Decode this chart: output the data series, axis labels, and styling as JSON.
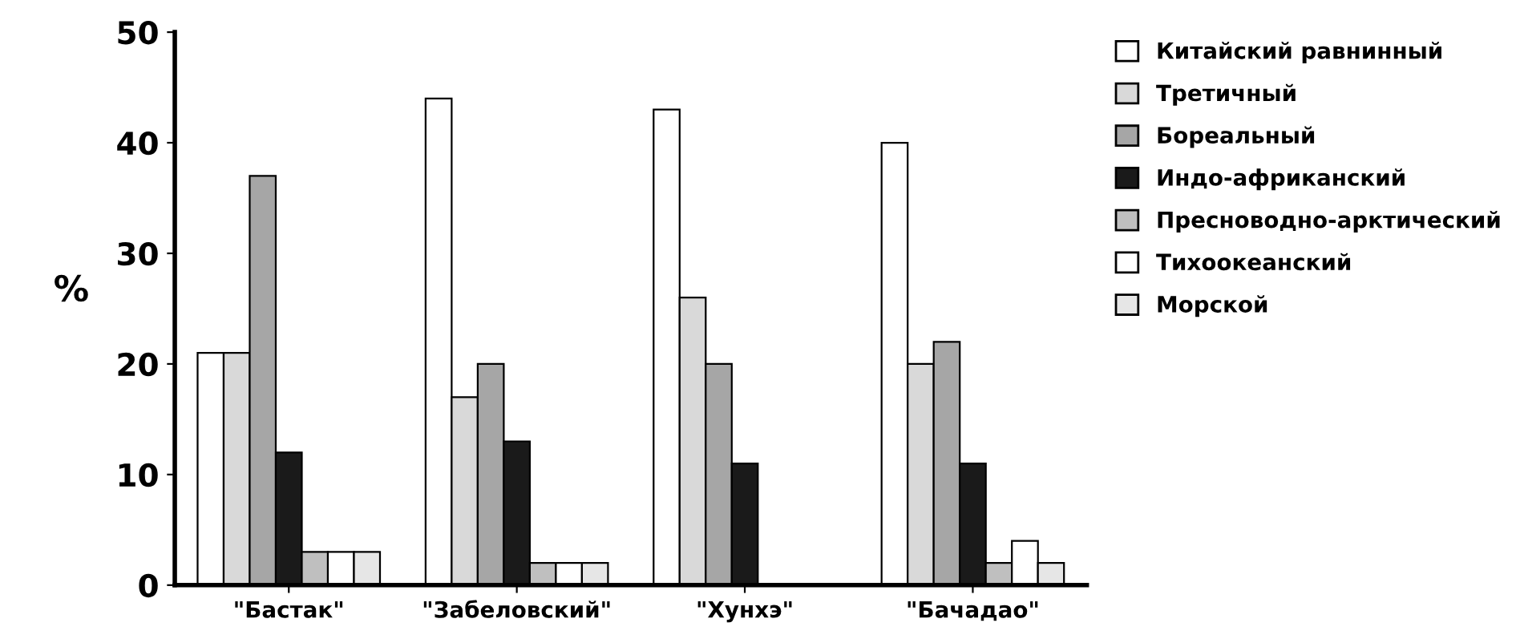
{
  "chart_data": {
    "type": "bar",
    "ylabel": "%",
    "categories": [
      "\"Бастак\"",
      "\"Забеловский\"",
      "\"Хунхэ\"",
      "\"Бачадао\""
    ],
    "series": [
      {
        "name": "Китайский равнинный",
        "color": "#ffffff",
        "values": [
          21,
          44,
          43,
          40
        ]
      },
      {
        "name": "Третичный",
        "color": "#d9d9d9",
        "values": [
          21,
          17,
          26,
          20
        ]
      },
      {
        "name": "Бореальный",
        "color": "#a6a6a6",
        "values": [
          37,
          20,
          20,
          22
        ]
      },
      {
        "name": "Индо-африканский",
        "color": "#1a1a1a",
        "values": [
          12,
          13,
          11,
          11
        ]
      },
      {
        "name": "Пресноводно-арктический",
        "color": "#bfbfbf",
        "values": [
          3,
          2,
          null,
          2
        ]
      },
      {
        "name": "Тихоокеанский",
        "color": "#ffffff",
        "values": [
          3,
          2,
          null,
          4
        ]
      },
      {
        "name": "Морской",
        "color": "#e6e6e6",
        "values": [
          3,
          2,
          null,
          2
        ]
      }
    ],
    "ylim": [
      0,
      50
    ],
    "yticks": [
      0,
      10,
      20,
      30,
      40,
      50
    ],
    "grid": false,
    "legend": "right"
  }
}
